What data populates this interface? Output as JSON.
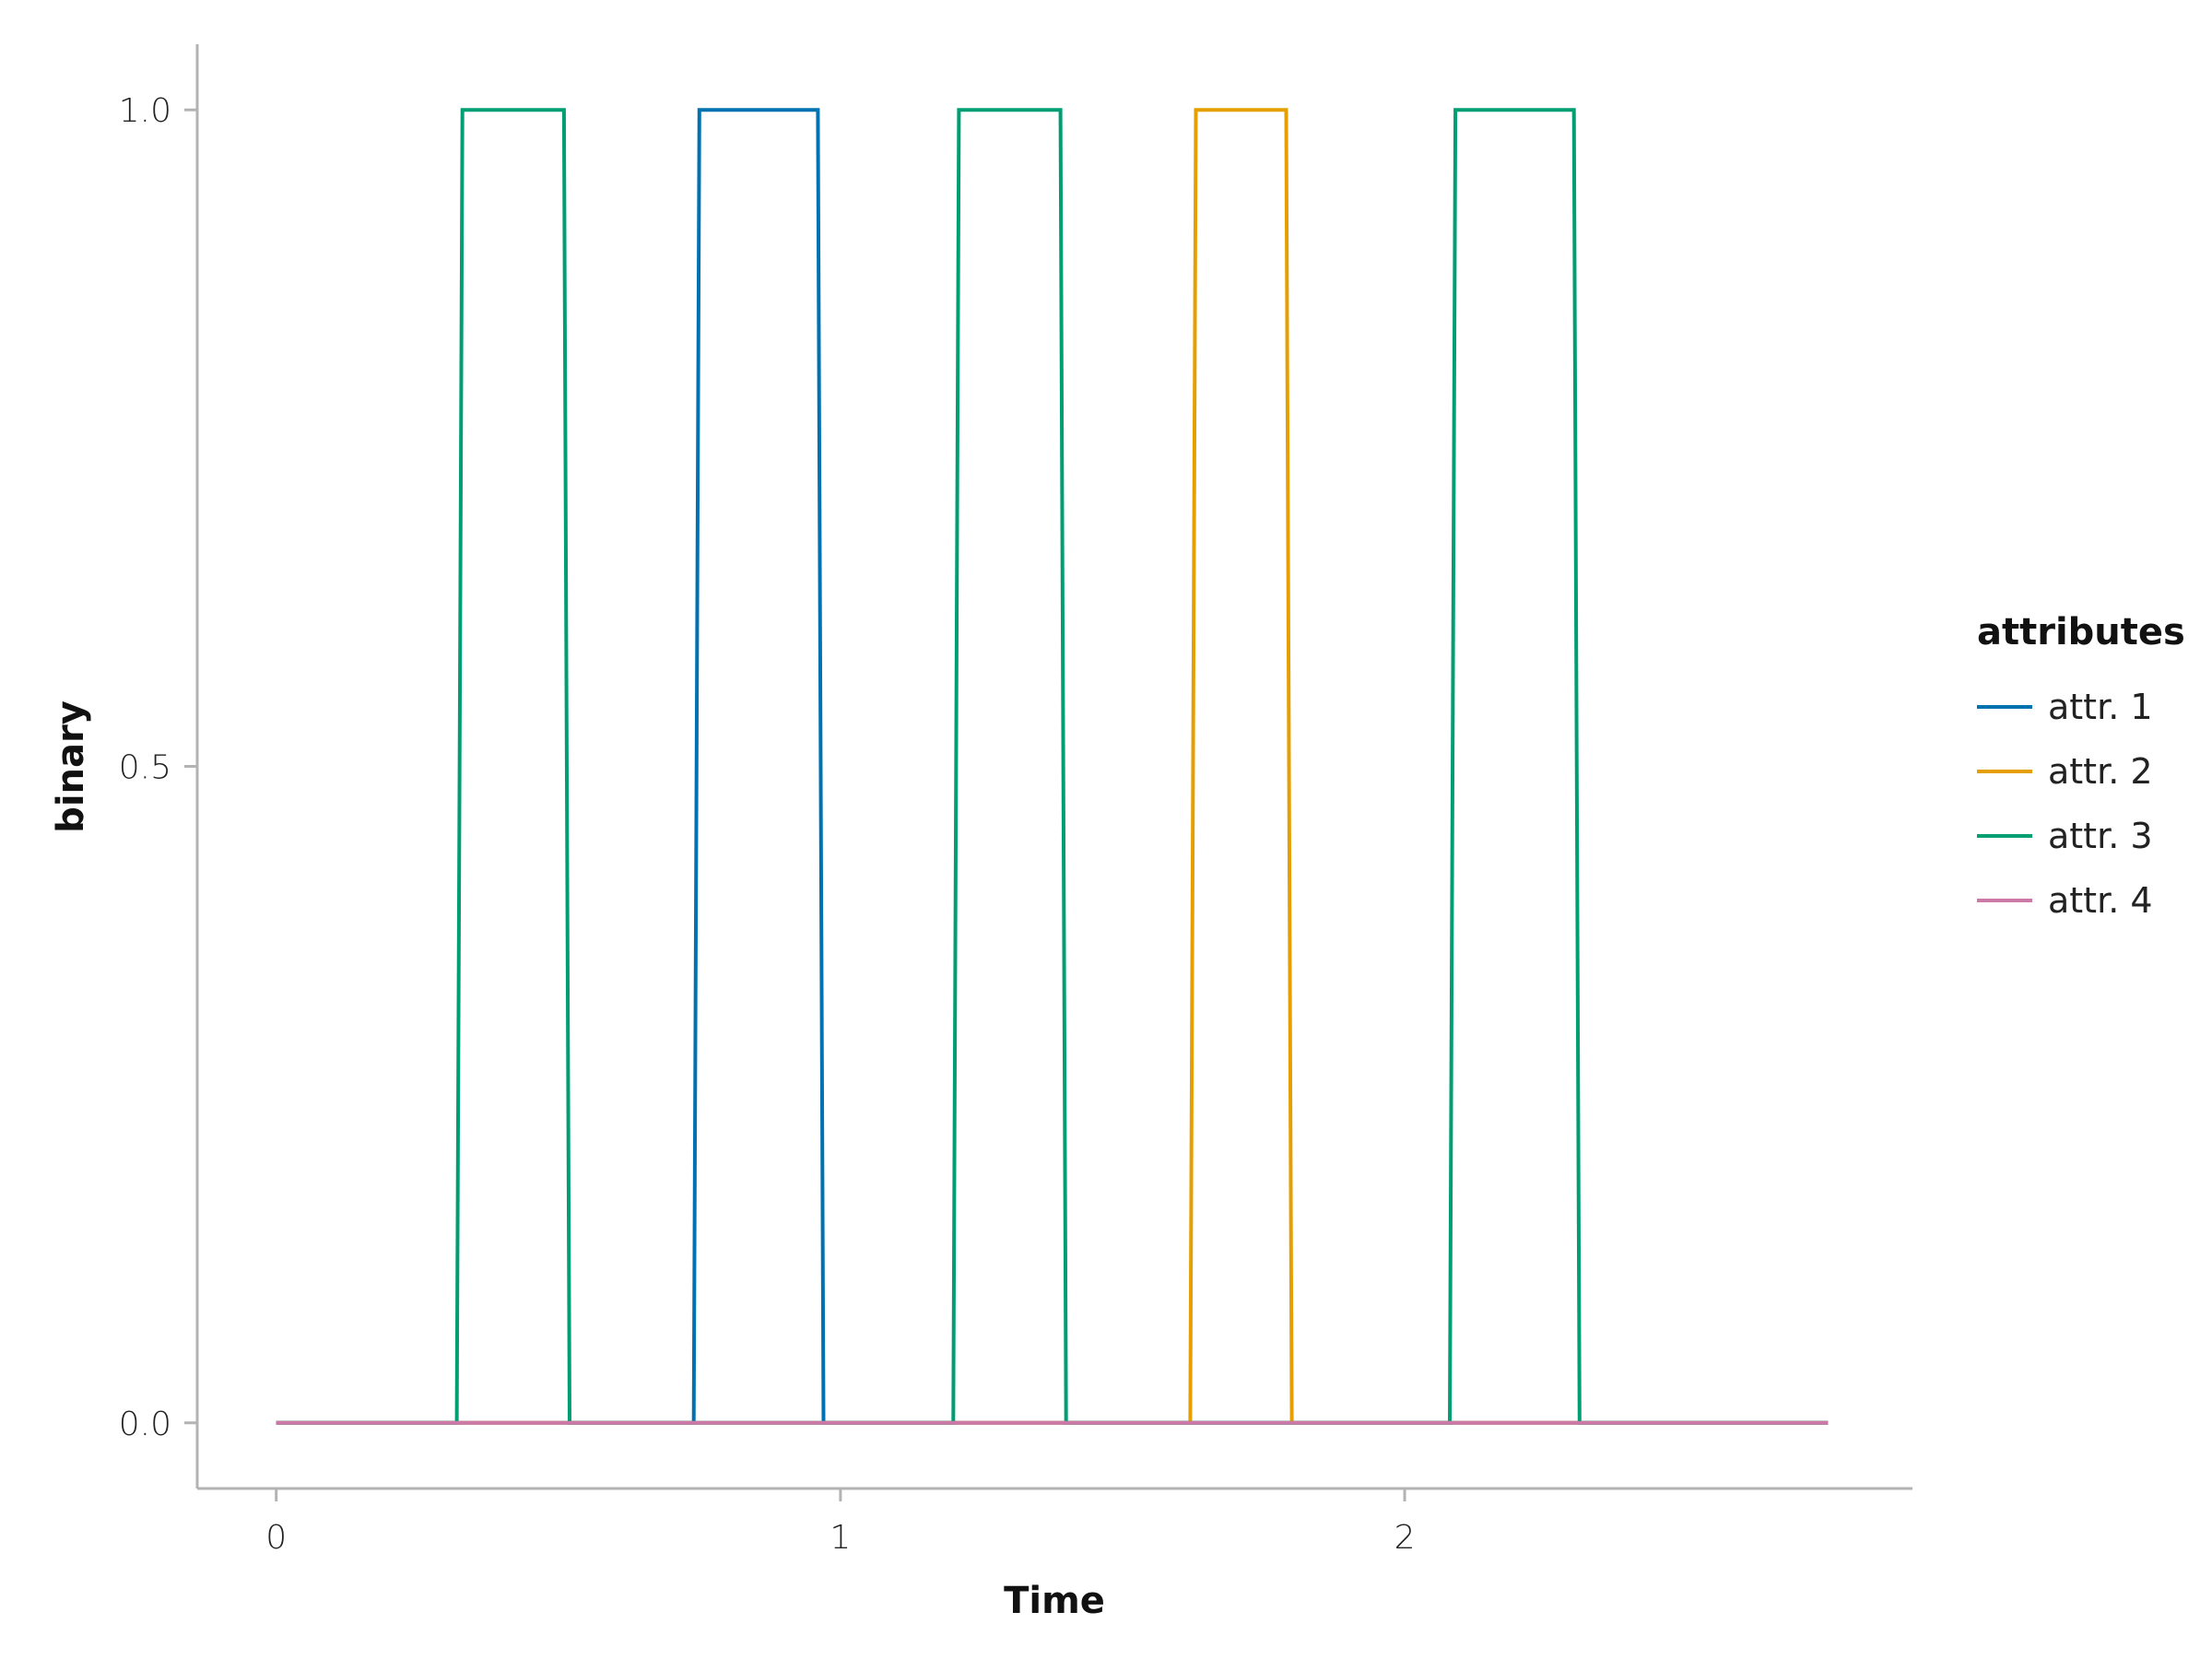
{
  "chart_data": {
    "type": "line",
    "xlabel": "Time",
    "ylabel": "binary",
    "xlim": [
      -0.14,
      2.9
    ],
    "ylim": [
      -0.05,
      1.05
    ],
    "xticks": [
      0,
      1,
      2
    ],
    "xtick_labels": [
      "0",
      "1",
      "2"
    ],
    "yticks": [
      0.0,
      0.5,
      1.0
    ],
    "ytick_labels": [
      "0.0",
      "0.5",
      "1.0"
    ],
    "grid": false,
    "legend": {
      "title": "attributes",
      "position": "right"
    },
    "series": [
      {
        "name": "attr. 1",
        "color": "#0072B2",
        "x": [
          0,
          0.74,
          0.75,
          0.96,
          0.97,
          2.75
        ],
        "y": [
          0,
          0,
          1,
          1,
          0,
          0
        ]
      },
      {
        "name": "attr. 2",
        "color": "#E69F00",
        "x": [
          0,
          1.62,
          1.63,
          1.79,
          1.8,
          2.75
        ],
        "y": [
          0,
          0,
          1,
          1,
          0,
          0
        ]
      },
      {
        "name": "attr. 3",
        "color": "#009E73",
        "x": [
          0,
          0.32,
          0.33,
          0.51,
          0.52,
          1.2,
          1.21,
          1.39,
          1.4,
          2.08,
          2.09,
          2.3,
          2.31,
          2.75
        ],
        "y": [
          0,
          0,
          1,
          1,
          0,
          0,
          1,
          1,
          0,
          0,
          1,
          1,
          0,
          0
        ]
      },
      {
        "name": "attr. 4",
        "color": "#CC79A7",
        "x": [
          0,
          2.75
        ],
        "y": [
          0,
          0
        ]
      }
    ]
  }
}
